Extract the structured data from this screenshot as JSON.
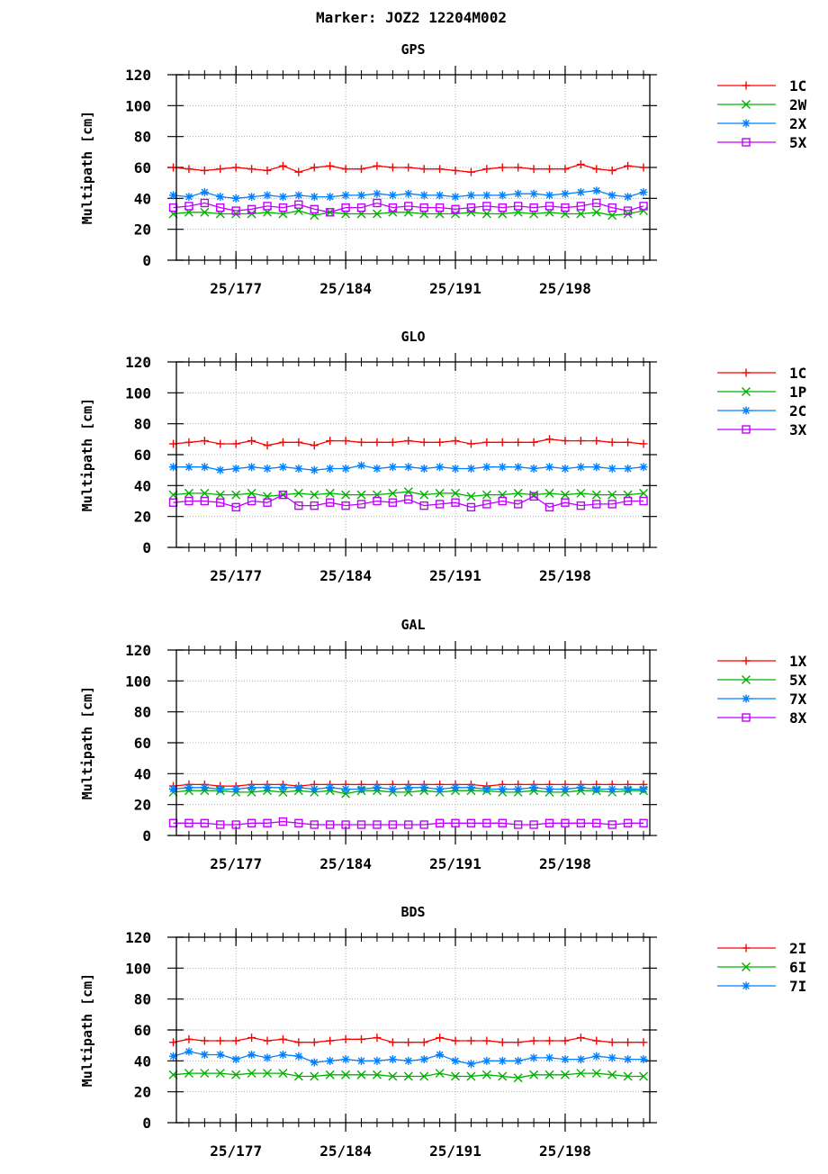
{
  "title": "Marker: JOZ2 12204M002",
  "chart_data": [
    {
      "type": "line",
      "title": "GPS",
      "ylabel": "Multipath [cm]",
      "ylim": [
        0,
        120
      ],
      "yticks": [
        0,
        20,
        40,
        60,
        80,
        100,
        120
      ],
      "xlim": [
        173.2,
        203.4
      ],
      "xticks": [
        {
          "value": 177,
          "label": "25/177"
        },
        {
          "value": 184,
          "label": "25/184"
        },
        {
          "value": 191,
          "label": "25/191"
        },
        {
          "value": 198,
          "label": "25/198"
        }
      ],
      "x": [
        173,
        174,
        175,
        176,
        177,
        178,
        179,
        180,
        181,
        182,
        183,
        184,
        185,
        186,
        187,
        188,
        189,
        190,
        191,
        192,
        193,
        194,
        195,
        196,
        197,
        198,
        199,
        200,
        201,
        202,
        203
      ],
      "series": [
        {
          "name": "1C",
          "color": "#ff0000",
          "marker": "plus",
          "values": [
            60,
            59,
            58,
            59,
            60,
            59,
            58,
            61,
            57,
            60,
            61,
            59,
            59,
            61,
            60,
            60,
            59,
            59,
            58,
            57,
            59,
            60,
            60,
            59,
            59,
            59,
            62,
            59,
            58,
            61,
            60
          ]
        },
        {
          "name": "2W",
          "color": "#00b000",
          "marker": "x",
          "values": [
            30,
            31,
            31,
            30,
            30,
            30,
            31,
            30,
            32,
            29,
            31,
            30,
            30,
            30,
            31,
            31,
            30,
            30,
            30,
            31,
            30,
            30,
            31,
            30,
            31,
            30,
            30,
            31,
            29,
            30,
            32
          ]
        },
        {
          "name": "2X",
          "color": "#0080ff",
          "marker": "star",
          "values": [
            42,
            41,
            44,
            41,
            40,
            41,
            42,
            41,
            42,
            41,
            41,
            42,
            42,
            43,
            42,
            43,
            42,
            42,
            41,
            42,
            42,
            42,
            43,
            43,
            42,
            43,
            44,
            45,
            42,
            41,
            44
          ]
        },
        {
          "name": "5X",
          "color": "#c000ff",
          "marker": "square",
          "values": [
            34,
            35,
            37,
            34,
            32,
            33,
            35,
            34,
            36,
            33,
            31,
            34,
            34,
            37,
            34,
            35,
            34,
            34,
            33,
            34,
            35,
            34,
            35,
            34,
            35,
            34,
            35,
            37,
            34,
            32,
            35
          ]
        }
      ]
    },
    {
      "type": "line",
      "title": "GLO",
      "ylabel": "Multipath [cm]",
      "ylim": [
        0,
        120
      ],
      "yticks": [
        0,
        20,
        40,
        60,
        80,
        100,
        120
      ],
      "xlim": [
        173.2,
        203.4
      ],
      "xticks": [
        {
          "value": 177,
          "label": "25/177"
        },
        {
          "value": 184,
          "label": "25/184"
        },
        {
          "value": 191,
          "label": "25/191"
        },
        {
          "value": 198,
          "label": "25/198"
        }
      ],
      "x": [
        173,
        174,
        175,
        176,
        177,
        178,
        179,
        180,
        181,
        182,
        183,
        184,
        185,
        186,
        187,
        188,
        189,
        190,
        191,
        192,
        193,
        194,
        195,
        196,
        197,
        198,
        199,
        200,
        201,
        202,
        203
      ],
      "series": [
        {
          "name": "1C",
          "color": "#ff0000",
          "marker": "plus",
          "values": [
            67,
            68,
            69,
            67,
            67,
            69,
            66,
            68,
            68,
            66,
            69,
            69,
            68,
            68,
            68,
            69,
            68,
            68,
            69,
            67,
            68,
            68,
            68,
            68,
            70,
            69,
            69,
            69,
            68,
            68,
            67
          ]
        },
        {
          "name": "1P",
          "color": "#00b000",
          "marker": "x",
          "values": [
            34,
            35,
            35,
            34,
            34,
            35,
            33,
            34,
            35,
            34,
            35,
            34,
            34,
            34,
            35,
            36,
            34,
            35,
            35,
            33,
            34,
            34,
            35,
            34,
            35,
            34,
            35,
            34,
            34,
            34,
            35
          ]
        },
        {
          "name": "2C",
          "color": "#0080ff",
          "marker": "star",
          "values": [
            52,
            52,
            52,
            50,
            51,
            52,
            51,
            52,
            51,
            50,
            51,
            51,
            53,
            51,
            52,
            52,
            51,
            52,
            51,
            51,
            52,
            52,
            52,
            51,
            52,
            51,
            52,
            52,
            51,
            51,
            52
          ]
        },
        {
          "name": "3X",
          "color": "#c000ff",
          "marker": "square",
          "values": [
            29,
            30,
            30,
            29,
            26,
            30,
            29,
            34,
            27,
            27,
            29,
            27,
            28,
            30,
            29,
            31,
            27,
            28,
            29,
            26,
            28,
            30,
            28,
            33,
            26,
            29,
            27,
            28,
            28,
            30,
            30
          ]
        }
      ]
    },
    {
      "type": "line",
      "title": "GAL",
      "ylabel": "Multipath [cm]",
      "ylim": [
        0,
        120
      ],
      "yticks": [
        0,
        20,
        40,
        60,
        80,
        100,
        120
      ],
      "xlim": [
        173.2,
        203.4
      ],
      "xticks": [
        {
          "value": 177,
          "label": "25/177"
        },
        {
          "value": 184,
          "label": "25/184"
        },
        {
          "value": 191,
          "label": "25/191"
        },
        {
          "value": 198,
          "label": "25/198"
        }
      ],
      "x": [
        173,
        174,
        175,
        176,
        177,
        178,
        179,
        180,
        181,
        182,
        183,
        184,
        185,
        186,
        187,
        188,
        189,
        190,
        191,
        192,
        193,
        194,
        195,
        196,
        197,
        198,
        199,
        200,
        201,
        202,
        203
      ],
      "series": [
        {
          "name": "1X",
          "color": "#ff0000",
          "marker": "plus",
          "values": [
            32,
            33,
            33,
            32,
            32,
            33,
            33,
            33,
            32,
            33,
            33,
            33,
            33,
            33,
            33,
            33,
            33,
            33,
            33,
            33,
            32,
            33,
            33,
            33,
            33,
            33,
            33,
            33,
            33,
            33,
            33
          ]
        },
        {
          "name": "5X",
          "color": "#00b000",
          "marker": "x",
          "values": [
            28,
            29,
            29,
            29,
            28,
            28,
            29,
            28,
            29,
            28,
            29,
            27,
            29,
            29,
            28,
            28,
            29,
            28,
            29,
            29,
            29,
            28,
            28,
            29,
            28,
            28,
            29,
            29,
            28,
            29,
            29
          ]
        },
        {
          "name": "7X",
          "color": "#0080ff",
          "marker": "star",
          "values": [
            30,
            31,
            31,
            30,
            30,
            31,
            31,
            31,
            31,
            30,
            31,
            30,
            30,
            31,
            30,
            31,
            31,
            30,
            31,
            31,
            30,
            30,
            30,
            31,
            30,
            30,
            31,
            30,
            30,
            30,
            30
          ]
        },
        {
          "name": "8X",
          "color": "#c000ff",
          "marker": "square",
          "values": [
            8,
            8,
            8,
            7,
            7,
            8,
            8,
            9,
            8,
            7,
            7,
            7,
            7,
            7,
            7,
            7,
            7,
            8,
            8,
            8,
            8,
            8,
            7,
            7,
            8,
            8,
            8,
            8,
            7,
            8,
            8
          ]
        }
      ]
    },
    {
      "type": "line",
      "title": "BDS",
      "ylabel": "Multipath [cm]",
      "ylim": [
        0,
        120
      ],
      "yticks": [
        0,
        20,
        40,
        60,
        80,
        100,
        120
      ],
      "xlim": [
        173.2,
        203.4
      ],
      "xticks": [
        {
          "value": 177,
          "label": "25/177"
        },
        {
          "value": 184,
          "label": "25/184"
        },
        {
          "value": 191,
          "label": "25/191"
        },
        {
          "value": 198,
          "label": "25/198"
        }
      ],
      "x": [
        173,
        174,
        175,
        176,
        177,
        178,
        179,
        180,
        181,
        182,
        183,
        184,
        185,
        186,
        187,
        188,
        189,
        190,
        191,
        192,
        193,
        194,
        195,
        196,
        197,
        198,
        199,
        200,
        201,
        202,
        203
      ],
      "series": [
        {
          "name": "2I",
          "color": "#ff0000",
          "marker": "plus",
          "values": [
            52,
            54,
            53,
            53,
            53,
            55,
            53,
            54,
            52,
            52,
            53,
            54,
            54,
            55,
            52,
            52,
            52,
            55,
            53,
            53,
            53,
            52,
            52,
            53,
            53,
            53,
            55,
            53,
            52,
            52,
            52
          ]
        },
        {
          "name": "6I",
          "color": "#00b000",
          "marker": "x",
          "values": [
            31,
            32,
            32,
            32,
            31,
            32,
            32,
            32,
            30,
            30,
            31,
            31,
            31,
            31,
            30,
            30,
            30,
            32,
            30,
            30,
            31,
            30,
            29,
            31,
            31,
            31,
            32,
            32,
            31,
            30,
            30
          ]
        },
        {
          "name": "7I",
          "color": "#0080ff",
          "marker": "star",
          "values": [
            43,
            46,
            44,
            44,
            41,
            44,
            42,
            44,
            43,
            39,
            40,
            41,
            40,
            40,
            41,
            40,
            41,
            44,
            40,
            38,
            40,
            40,
            40,
            42,
            42,
            41,
            41,
            43,
            42,
            41,
            41
          ]
        }
      ]
    }
  ]
}
